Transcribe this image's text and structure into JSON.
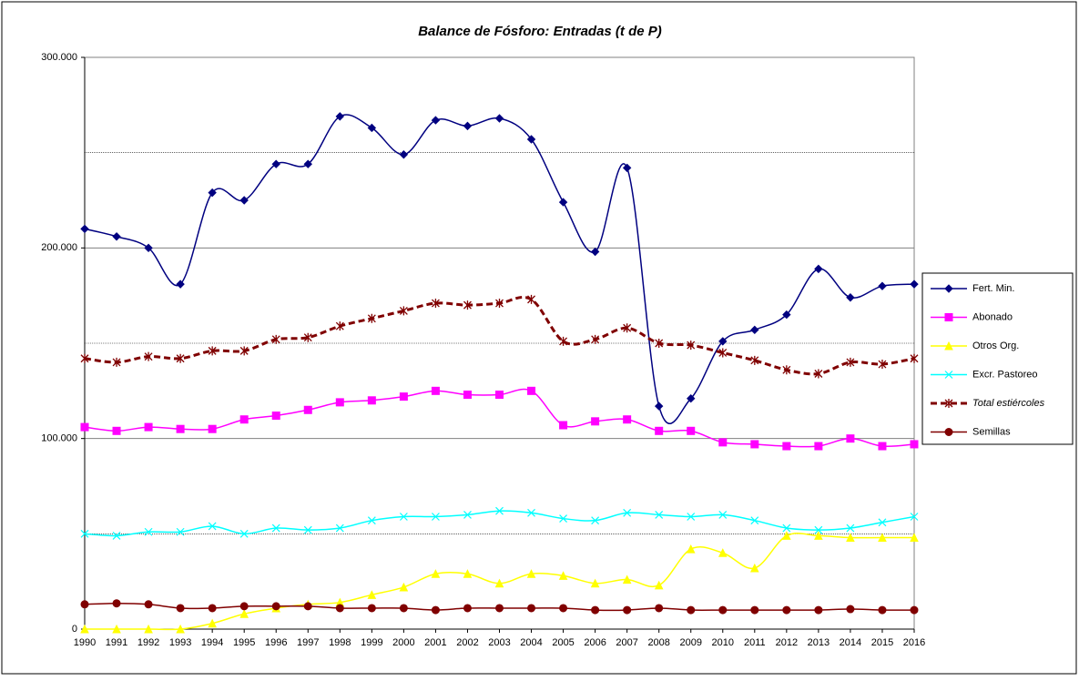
{
  "chart_data": {
    "type": "line",
    "title": "Balance de Fósforo: Entradas (t de P)",
    "categories": [
      "1990",
      "1991",
      "1992",
      "1993",
      "1994",
      "1995",
      "1996",
      "1997",
      "1998",
      "1999",
      "2000",
      "2001",
      "2002",
      "2003",
      "2004",
      "2005",
      "2006",
      "2007",
      "2008",
      "2009",
      "2010",
      "2011",
      "2012",
      "2013",
      "2014",
      "2015",
      "2016"
    ],
    "ylim": [
      0,
      300000
    ],
    "yticks": [
      0,
      {
        "value": 100000,
        "label": "100.000"
      },
      {
        "value": 200000,
        "label": "200.000"
      },
      {
        "value": 300000,
        "label": "300.000"
      }
    ],
    "minor_grid": [
      50000,
      150000,
      250000
    ],
    "grid": true,
    "legend": "right",
    "series": [
      {
        "name": "Fert. Min.",
        "color": "#000080",
        "marker": "diamond",
        "values": [
          210000,
          206000,
          200000,
          181000,
          229000,
          225000,
          244000,
          244000,
          269000,
          263000,
          249000,
          267000,
          264000,
          268000,
          257000,
          224000,
          198000,
          242000,
          117000,
          121000,
          151000,
          157000,
          165000,
          189000,
          174000,
          180000,
          181000
        ]
      },
      {
        "name": "Abonado",
        "color": "#ff00ff",
        "marker": "square",
        "values": [
          106000,
          104000,
          106000,
          105000,
          105000,
          110000,
          112000,
          115000,
          119000,
          120000,
          122000,
          125000,
          123000,
          123000,
          125000,
          107000,
          109000,
          110000,
          104000,
          104000,
          98000,
          97000,
          96000,
          96000,
          100000,
          96000,
          97000
        ]
      },
      {
        "name": "Otros Org.",
        "color": "#ffff00",
        "marker": "triangle",
        "values": [
          0,
          0,
          0,
          0,
          3000,
          8000,
          11000,
          13000,
          14000,
          18000,
          22000,
          29000,
          29000,
          24000,
          29000,
          28000,
          24000,
          26000,
          23000,
          42000,
          40000,
          32000,
          49000,
          49000,
          48000,
          48000,
          48000
        ]
      },
      {
        "name": "Excr. Pastoreo",
        "color": "#00ffff",
        "marker": "x",
        "values": [
          50000,
          49000,
          51000,
          51000,
          54000,
          50000,
          53000,
          52000,
          53000,
          57000,
          59000,
          59000,
          60000,
          62000,
          61000,
          58000,
          57000,
          61000,
          60000,
          59000,
          60000,
          57000,
          53000,
          52000,
          53000,
          56000,
          59000
        ]
      },
      {
        "name": "Total estiércoles",
        "color": "#800000",
        "marker": "star",
        "dashed": true,
        "italic": true,
        "values": [
          142000,
          140000,
          143000,
          142000,
          146000,
          146000,
          152000,
          153000,
          159000,
          163000,
          167000,
          171000,
          170000,
          171000,
          173000,
          151000,
          152000,
          158000,
          150000,
          149000,
          145000,
          141000,
          136000,
          134000,
          140000,
          139000,
          142000
        ]
      },
      {
        "name": "Semillas",
        "color": "#800000",
        "marker": "circle",
        "values": [
          13000,
          13500,
          13000,
          11000,
          11000,
          12000,
          12000,
          12000,
          11000,
          11000,
          11000,
          10000,
          11000,
          11000,
          11000,
          11000,
          10000,
          10000,
          11000,
          10000,
          10000,
          10000,
          10000,
          10000,
          10500,
          10000,
          10000
        ]
      }
    ]
  }
}
